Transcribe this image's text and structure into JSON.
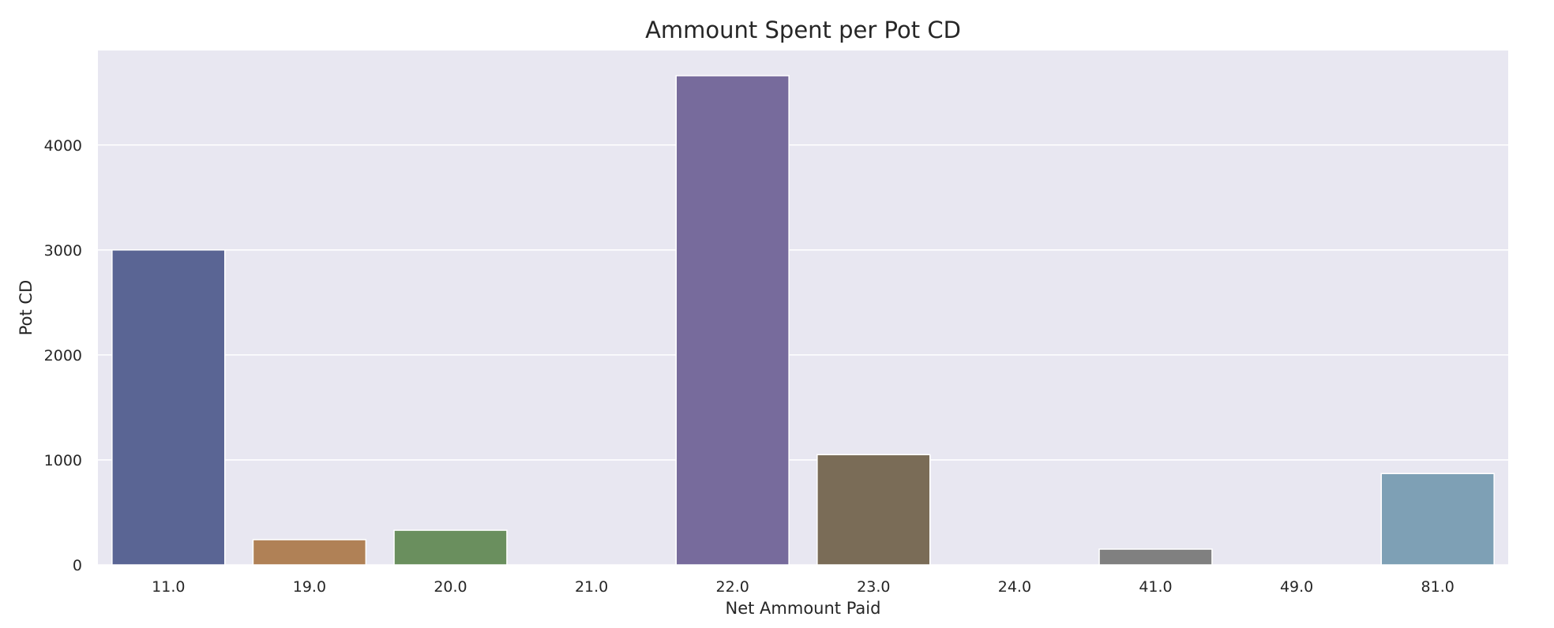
{
  "chart_data": {
    "type": "bar",
    "title": "Ammount Spent per Pot CD",
    "xlabel": "Net Ammount Paid",
    "ylabel": "Pot CD",
    "categories": [
      "11.0",
      "19.0",
      "20.0",
      "21.0",
      "22.0",
      "23.0",
      "24.0",
      "41.0",
      "49.0",
      "81.0"
    ],
    "values": [
      3000,
      240,
      330,
      0,
      4660,
      1050,
      0,
      150,
      0,
      870
    ],
    "ylim": [
      0,
      4900
    ],
    "yticks": [
      0,
      1000,
      2000,
      3000,
      4000
    ],
    "grid": true,
    "legend": "none",
    "bar_colors": [
      "#5a6594",
      "#b08156",
      "#6a8f5e",
      "#a0515b",
      "#776b9c",
      "#7a6c57",
      "#c58caf",
      "#808080",
      "#c4c07e",
      "#7ea0b5"
    ],
    "background_color": "#e8e7f1",
    "grid_color": "#ffffff"
  }
}
